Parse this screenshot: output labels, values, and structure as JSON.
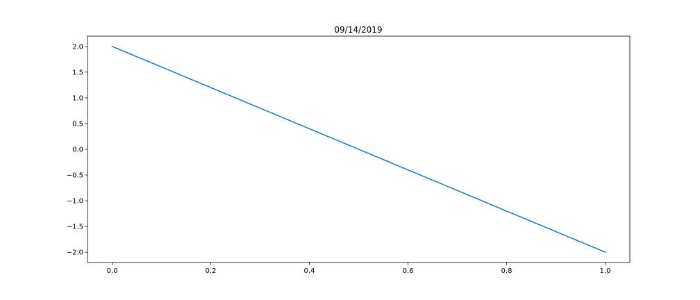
{
  "chart_data": {
    "type": "line",
    "title": "09/14/2019",
    "xlabel": "",
    "ylabel": "",
    "xlim": [
      -0.05,
      1.05
    ],
    "ylim": [
      -2.2,
      2.2
    ],
    "xticks": [
      0.0,
      0.2,
      0.4,
      0.6,
      0.8,
      1.0
    ],
    "xtick_labels": [
      "0.0",
      "0.2",
      "0.4",
      "0.6",
      "0.8",
      "1.0"
    ],
    "yticks": [
      2.0,
      1.5,
      1.0,
      0.5,
      0.0,
      -0.5,
      -1.0,
      -1.5,
      -2.0
    ],
    "ytick_labels": [
      "2.0",
      "1.5",
      "1.0",
      "0.5",
      "0.0",
      "−0.5",
      "−1.0",
      "−1.5",
      "−2.0"
    ],
    "grid": false,
    "series": [
      {
        "x": [
          0.0,
          1.0
        ],
        "y": [
          2.0,
          -2.0
        ],
        "color": "#1f77b4"
      }
    ]
  }
}
